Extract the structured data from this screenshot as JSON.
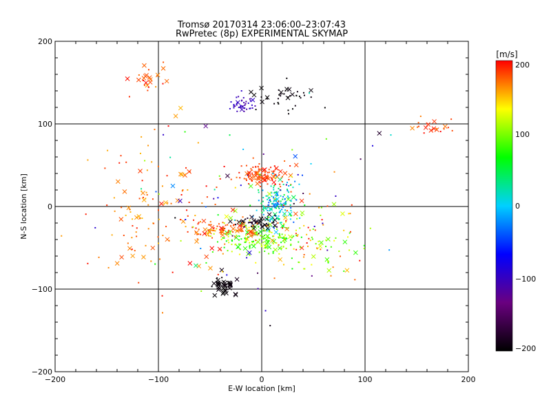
{
  "chart_data": {
    "type": "scatter",
    "title": "Tromsø 20170314 23:06:00–23:07:43",
    "subtitle": "RwPretec (8p) EXPERIMENTAL SKYMAP",
    "xlabel": "E-W location [km]",
    "ylabel": "N-S location [km]",
    "xlim": [
      -200,
      200
    ],
    "ylim": [
      -200,
      200
    ],
    "xticks": [
      "−200",
      "−100",
      "0",
      "100",
      "200"
    ],
    "yticks": [
      "−200",
      "−100",
      "0",
      "100",
      "200"
    ],
    "grid": true,
    "colorbar": {
      "label": "[m/s]",
      "range": [
        -200,
        200
      ],
      "ticks": [
        "−200",
        "−100",
        "0",
        "100",
        "200"
      ],
      "colormap": [
        "#000000",
        "#6a0080",
        "#0000ff",
        "#00d0ff",
        "#00ff00",
        "#ffff00",
        "#ff0000"
      ]
    },
    "markers": [
      "dot",
      "cross"
    ],
    "clusters": [
      {
        "cx": 0,
        "cy": 38,
        "sx": 14,
        "sy": 7,
        "n": 110,
        "v": [
          170,
          200
        ],
        "cross": 0.15
      },
      {
        "cx": 15,
        "cy": 2,
        "sx": 10,
        "sy": 14,
        "n": 150,
        "v": [
          -40,
          60
        ],
        "cross": 0.1
      },
      {
        "cx": -5,
        "cy": -38,
        "sx": 22,
        "sy": 8,
        "n": 150,
        "v": [
          60,
          130
        ],
        "cross": 0.15
      },
      {
        "cx": -5,
        "cy": -20,
        "sx": 10,
        "sy": 4,
        "n": 50,
        "v": [
          -200,
          -180
        ],
        "cross": 0.3
      },
      {
        "cx": -40,
        "cy": -28,
        "sx": 18,
        "sy": 6,
        "n": 90,
        "v": [
          150,
          200
        ],
        "cross": 0.3
      },
      {
        "cx": -38,
        "cy": -95,
        "sx": 6,
        "sy": 6,
        "n": 40,
        "v": [
          -200,
          -190
        ],
        "cross": 0.8
      },
      {
        "cx": -20,
        "cy": 124,
        "sx": 6,
        "sy": 5,
        "n": 40,
        "v": [
          -120,
          -90
        ],
        "cross": 0.1
      },
      {
        "cx": 25,
        "cy": 135,
        "sx": 20,
        "sy": 10,
        "n": 40,
        "v": [
          -200,
          -190
        ],
        "cross": 0.3
      },
      {
        "cx": -110,
        "cy": 150,
        "sx": 12,
        "sy": 10,
        "n": 25,
        "v": [
          160,
          200
        ],
        "cross": 0.4
      },
      {
        "cx": 165,
        "cy": 95,
        "sx": 15,
        "sy": 5,
        "n": 20,
        "v": [
          160,
          200
        ],
        "cross": 0.3
      },
      {
        "cx": -100,
        "cy": 0,
        "sx": 30,
        "sy": 50,
        "n": 120,
        "v": [
          150,
          200
        ],
        "cross": 0.25
      },
      {
        "cx": 40,
        "cy": -40,
        "sx": 30,
        "sy": 25,
        "n": 120,
        "v": [
          60,
          200
        ],
        "cross": 0.2
      },
      {
        "cx": 0,
        "cy": 0,
        "sx": 60,
        "sy": 50,
        "n": 100,
        "v": [
          -200,
          200
        ],
        "cross": 0.2
      }
    ]
  }
}
